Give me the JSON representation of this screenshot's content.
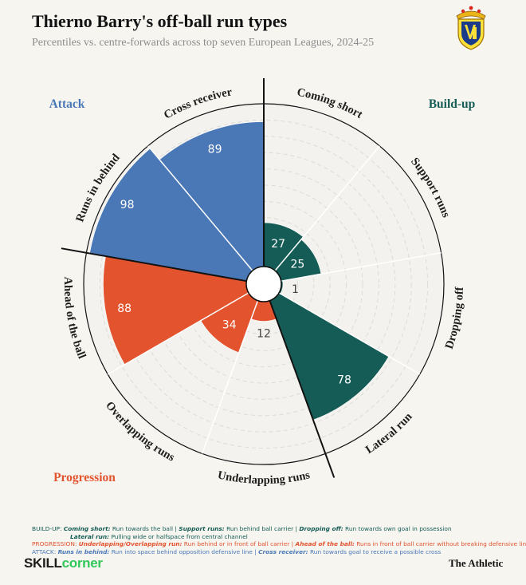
{
  "header": {
    "title": "Thierno Barry's off-ball run types",
    "subtitle": "Percentiles vs. centre-forwards across top seven European Leagues, 2024-25"
  },
  "colors": {
    "build_up": "#145c55",
    "progression": "#e2532e",
    "attack": "#4a78b7",
    "background": "#f6f5f0",
    "empty_wedge": "#f3f2ee",
    "grid": "#dcdcd7",
    "line": "#111111"
  },
  "chart_data": {
    "type": "polar-bar",
    "title": "Thierno Barry's off-ball run types",
    "subtitle": "Percentiles vs. centre-forwards across top seven European Leagues, 2024-25",
    "rlim": [
      0,
      100
    ],
    "grid_rings": [
      10,
      20,
      30,
      40,
      50,
      60,
      70,
      80,
      90
    ],
    "start_direction": "12 o'clock, clockwise",
    "groups": [
      {
        "name": "Build-up",
        "color_key": "build_up"
      },
      {
        "name": "Progression",
        "color_key": "progression"
      },
      {
        "name": "Attack",
        "color_key": "attack"
      }
    ],
    "categories": [
      "Coming short",
      "Support runs",
      "Dropping off",
      "Lateral run",
      "Underlapping runs",
      "Overlapping runs",
      "Ahead of the ball",
      "Runs in behind",
      "Cross receiver"
    ],
    "values": [
      27,
      25,
      1,
      78,
      12,
      34,
      88,
      98,
      89
    ],
    "category_groups": [
      "Build-up",
      "Build-up",
      "Build-up",
      "Build-up",
      "Progression",
      "Progression",
      "Progression",
      "Attack",
      "Attack"
    ]
  },
  "legend": {
    "build_up": {
      "prefix": "BUILD-UP: ",
      "items": [
        {
          "term": "Coming short:",
          "desc": " Run towards the ball"
        },
        {
          "term": "Support runs:",
          "desc": " Run behind ball carrier"
        },
        {
          "term": "Dropping off:",
          "desc": " Run towards own goal in possession"
        }
      ],
      "line2": {
        "term": "Lateral run:",
        "desc": " Pulling wide or halfspace from central channel"
      }
    },
    "progression": {
      "prefix": "PROGRESSION: ",
      "items": [
        {
          "term": "Underlapping/Overlapping run:",
          "desc": " Run behind or in front of ball carrier"
        },
        {
          "term": "Ahead of the ball:",
          "desc": " Runs in front of ball carrier without breaking defensive line"
        }
      ]
    },
    "attack": {
      "prefix": "ATTACK: ",
      "items": [
        {
          "term": "Runs in behind:",
          "desc": " Run into space behind opposition defensive line"
        },
        {
          "term": "Cross receiver:",
          "desc": " Run towards goal to receive a possible cross"
        }
      ]
    },
    "separator": " | "
  },
  "footer": {
    "brand_left_a": "SKILL",
    "brand_left_b": "corner",
    "brand_right": "The Athletic"
  }
}
